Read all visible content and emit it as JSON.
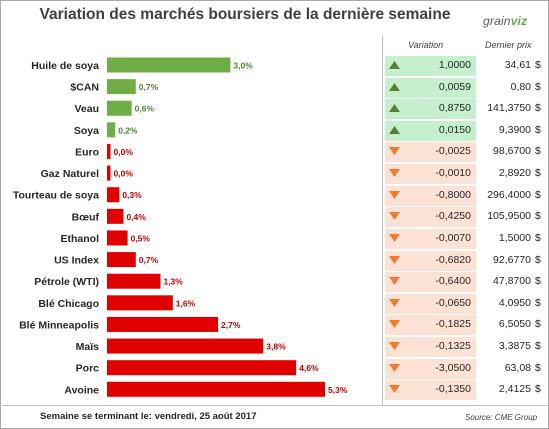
{
  "title": "Variation des marchés boursiers de la dernière semaine",
  "logo": {
    "text_pre": "grain",
    "text_leaf": "viz"
  },
  "table_headers": {
    "variation": "Variation",
    "price": "Dernier prix"
  },
  "currency": "$",
  "footer": {
    "week_label": "Semaine se terminant le: vendredi, 25 août 2017",
    "source": "Source: CME Group"
  },
  "colors": {
    "positive_bar": "#70ad47",
    "negative_bar": "#e00000",
    "positive_label": "#538135",
    "negative_label": "#c00000",
    "positive_cell": "#c6efce",
    "negative_cell": "#fbe2d5",
    "arrow_up": "#548235",
    "arrow_down": "#ed7d31"
  },
  "chart_data": {
    "type": "bar",
    "orientation": "horizontal",
    "categories": [
      "Huile de soya",
      "$CAN",
      "Veau",
      "Soya",
      "Euro",
      "Gaz Naturel",
      "Tourteau de soya",
      "Bœuf",
      "Ethanol",
      "US Index",
      "Pétrole (WTI)",
      "Blé Chicago",
      "Blé Minneapolis",
      "Maïs",
      "Porc",
      "Avoine"
    ],
    "values_pct": [
      3.0,
      0.7,
      0.6,
      0.2,
      0.0,
      0.0,
      0.3,
      0.4,
      0.5,
      0.7,
      1.3,
      1.6,
      2.7,
      3.8,
      4.6,
      5.3
    ],
    "labels": [
      "3,0%",
      "0,7%",
      "0,6%",
      "0,2%",
      "0,0%",
      "0,0%",
      "0,3%",
      "0,4%",
      "0,5%",
      "0,7%",
      "1,3%",
      "1,6%",
      "2,7%",
      "3,8%",
      "4,6%",
      "5,3%"
    ],
    "direction": [
      "up",
      "up",
      "up",
      "up",
      "down",
      "down",
      "down",
      "down",
      "down",
      "down",
      "down",
      "down",
      "down",
      "down",
      "down",
      "down"
    ],
    "variation": [
      "1,0000",
      "0,0059",
      "0,8750",
      "0,0150",
      "-0,0025",
      "-0,0010",
      "-0,8000",
      "-0,4250",
      "-0,0070",
      "-0,6820",
      "-0,6400",
      "-0,0650",
      "-0,1825",
      "-0,1325",
      "-3,0500",
      "-0,1350"
    ],
    "last_price": [
      "34,61",
      "0,80",
      "141,3750",
      "9,3900",
      "98,6700",
      "2,8920",
      "296,4000",
      "105,9500",
      "1,5000",
      "92,6770",
      "47,8700",
      "4,0950",
      "6,5050",
      "3,3875",
      "63,08",
      "2,4125"
    ],
    "xlim": [
      0,
      5.3
    ]
  }
}
